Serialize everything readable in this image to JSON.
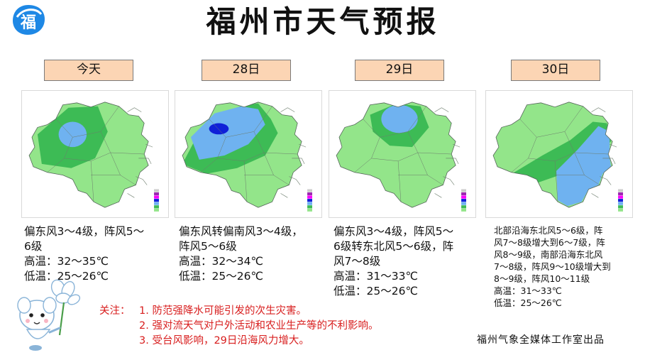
{
  "header": {
    "title": "福州市天气预报"
  },
  "logo": {
    "glyph": "福",
    "color": "#1e88e5"
  },
  "days": [
    {
      "label": "今天",
      "size": "normal",
      "lines": [
        "偏东风3～4级，阵风5～",
        "6级",
        "高温：32～35℃",
        "低温：25～26℃"
      ]
    },
    {
      "label": "28日",
      "size": "normal",
      "lines": [
        "偏东风转偏南风3～4级，",
        "阵风5～6级",
        "高温：32～34℃",
        "低温：25～26℃"
      ]
    },
    {
      "label": "29日",
      "size": "normal",
      "lines": [
        "偏东风3～4级，阵风5～",
        "6级转东北风5～6级，阵",
        "风7～8级",
        "高温：31～33℃",
        "低温：25～26℃"
      ]
    },
    {
      "label": "30日",
      "size": "small",
      "lines": [
        "北部沿海东北风5～6级，阵",
        "风7～8级增大到6～7级，阵",
        "风8～9级，南部沿海东北风",
        "7～8级，阵风9～10级增大到",
        "8～9级，阵风10～11级",
        "高温：31～33℃",
        "低温：25～26℃"
      ]
    }
  ],
  "notes": {
    "lead": "关注：",
    "items": [
      "1. 防范强降水可能引发的次生灾害。",
      "2. 强对流天气对户外活动和农业生产等的不利影响。",
      "3. 受台风影响，29日沿海风力增大。"
    ]
  },
  "credit": "福州气象全媒体工作室出品",
  "colors": {
    "day_box": "#fcd5b4",
    "rain_light": "#93e58a",
    "rain_moderate": "#3dbb55",
    "rain_heavy": "#6fb2f0",
    "rain_storm": "#1020d8",
    "notes_text": "#d81e1e"
  }
}
